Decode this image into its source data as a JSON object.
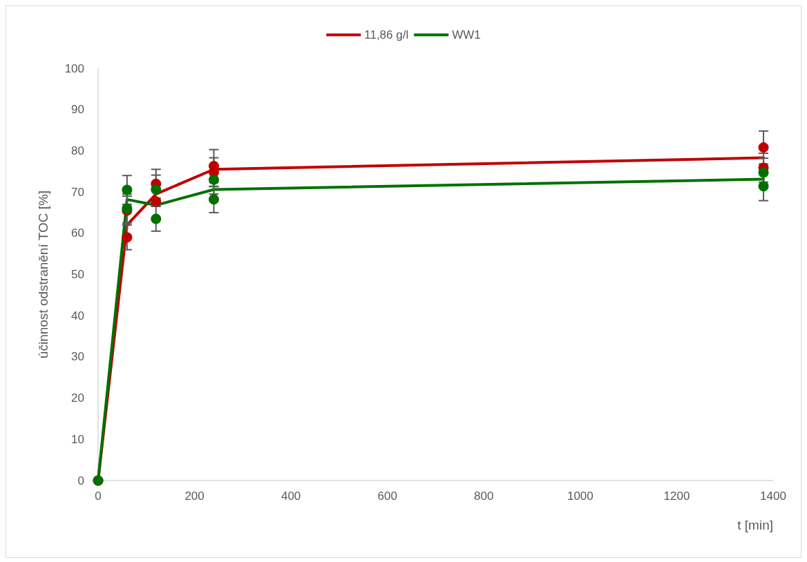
{
  "chart_data": {
    "type": "line",
    "xlabel": "t [min]",
    "ylabel": "účinnost odstranění TOC [%]",
    "xlim": [
      0,
      1400
    ],
    "xticks": [
      0,
      200,
      400,
      600,
      800,
      1000,
      1200,
      1400
    ],
    "ylim": [
      0,
      100
    ],
    "yticks": [
      0,
      10,
      20,
      30,
      40,
      50,
      60,
      70,
      80,
      90,
      100
    ],
    "grid": false,
    "legend": "top",
    "marker": "none",
    "line_style": "solid",
    "series": [
      {
        "name": "11,86 g/l",
        "color": "#c00000",
        "x": [
          0,
          60,
          120,
          240,
          1380
        ],
        "values": [
          0,
          62,
          69.5,
          75.5,
          78.3
        ]
      },
      {
        "name": "WW1",
        "color": "#007000",
        "x": [
          0,
          60,
          120,
          240,
          1380
        ],
        "values": [
          0,
          68.2,
          66.8,
          70.6,
          73.1
        ]
      },
      {
        "type": "scatter",
        "marker": "circle",
        "color": "#c00000",
        "x": [
          0,
          60,
          60,
          120,
          120,
          240,
          240,
          1380,
          1380
        ],
        "values": [
          0,
          65.5,
          59,
          72,
          67.7,
          76.3,
          74.8,
          80.8,
          75.9
        ],
        "errors": [
          null,
          3.5,
          3,
          3.5,
          null,
          4,
          3.5,
          4,
          3.5
        ]
      },
      {
        "type": "scatter",
        "marker": "circle",
        "color": "#007000",
        "x": [
          0,
          60,
          60,
          120,
          120,
          240,
          240,
          1380,
          1380
        ],
        "values": [
          0,
          70.5,
          66,
          70.6,
          63.5,
          73,
          68.2,
          74.7,
          71.4
        ],
        "errors": [
          null,
          3.5,
          3.5,
          3.5,
          3,
          3.5,
          3.2,
          3.5,
          3.5
        ]
      }
    ]
  }
}
